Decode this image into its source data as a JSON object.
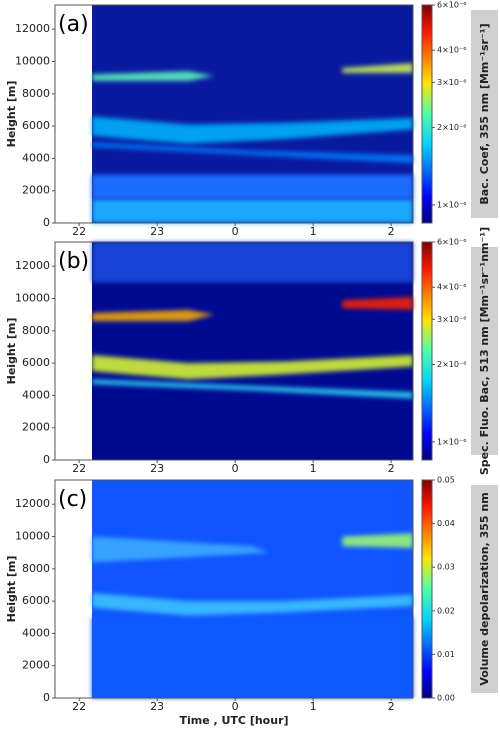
{
  "chart_data": [
    {
      "type": "heatmap",
      "panel_label": "(a)",
      "ylabel": "Height [m]",
      "ylim": [
        0,
        13500
      ],
      "yticks": [
        0,
        2000,
        4000,
        6000,
        8000,
        10000,
        12000
      ],
      "xlim": [
        21.69,
        26.28
      ],
      "xticks": [
        {
          "value": 22,
          "label": "22"
        },
        {
          "value": 23,
          "label": "23"
        },
        {
          "value": 24,
          "label": "0"
        },
        {
          "value": 25,
          "label": "1"
        },
        {
          "value": 26,
          "label": "2"
        }
      ],
      "colorbar_label": "Bac. Coef, 355 nm  [Mm⁻¹sr⁻¹]",
      "clim": [
        8.5e-07,
        6e-06
      ],
      "clog": true,
      "cticks": [
        {
          "value": 1e-06,
          "label": "1×10⁻⁶"
        },
        {
          "value": 2e-06,
          "label": "2×10⁻⁶"
        },
        {
          "value": 3e-06,
          "label": "3×10⁻⁶"
        },
        {
          "value": 4e-06,
          "label": "4×10⁻⁶"
        },
        {
          "value": 6e-06,
          "label": "6×10⁻⁶"
        }
      ],
      "colormap": "jet"
    },
    {
      "type": "heatmap",
      "panel_label": "(b)",
      "ylabel": "Height [m]",
      "ylim": [
        0,
        13500
      ],
      "yticks": [
        0,
        2000,
        4000,
        6000,
        8000,
        10000,
        12000
      ],
      "xlim": [
        21.69,
        26.28
      ],
      "xticks": [
        {
          "value": 22,
          "label": "22"
        },
        {
          "value": 23,
          "label": "23"
        },
        {
          "value": 24,
          "label": "0"
        },
        {
          "value": 25,
          "label": "1"
        },
        {
          "value": 26,
          "label": "2"
        }
      ],
      "colorbar_label": "Spec. Fluo. Bac, 513 nm  [Mm⁻¹sr⁻¹nm⁻¹]",
      "clim": [
        8.5e-07,
        6e-06
      ],
      "clog": true,
      "cticks": [
        {
          "value": 1e-06,
          "label": "1×10⁻⁶"
        },
        {
          "value": 2e-06,
          "label": "2×10⁻⁶"
        },
        {
          "value": 3e-06,
          "label": "3×10⁻⁶"
        },
        {
          "value": 4e-06,
          "label": "4×10⁻⁶"
        },
        {
          "value": 6e-06,
          "label": "6×10⁻⁶"
        }
      ],
      "colormap": "jet"
    },
    {
      "type": "heatmap",
      "panel_label": "(c)",
      "ylabel": "Height [m]",
      "xlabel": "Time , UTC [hour]",
      "ylim": [
        0,
        13500
      ],
      "yticks": [
        0,
        2000,
        4000,
        6000,
        8000,
        10000,
        12000
      ],
      "xlim": [
        21.69,
        26.28
      ],
      "xticks": [
        {
          "value": 22,
          "label": "22"
        },
        {
          "value": 23,
          "label": "23"
        },
        {
          "value": 24,
          "label": "0"
        },
        {
          "value": 25,
          "label": "1"
        },
        {
          "value": 26,
          "label": "2"
        }
      ],
      "colorbar_label": "Volume depolarization, 355 nm",
      "clim": [
        0,
        0.05
      ],
      "clog": false,
      "cticks": [
        {
          "value": 0,
          "label": "0.00"
        },
        {
          "value": 0.01,
          "label": "0.01"
        },
        {
          "value": 0.02,
          "label": "0.02"
        },
        {
          "value": 0.03,
          "label": "0.03"
        },
        {
          "value": 0.04,
          "label": "0.04"
        },
        {
          "value": 0.05,
          "label": "0.05"
        }
      ],
      "colormap": "jet"
    }
  ]
}
